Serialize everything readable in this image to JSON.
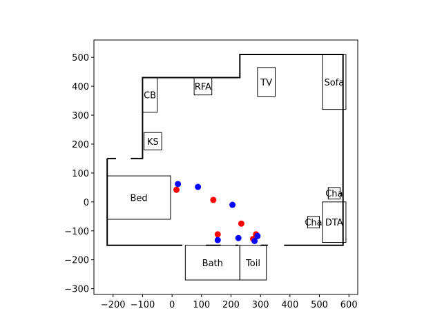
{
  "chart_data": {
    "type": "scatter",
    "title": "",
    "xlabel": "",
    "ylabel": "",
    "xlim": [
      -265,
      630
    ],
    "ylim": [
      -320,
      560
    ],
    "xticks": [
      -200,
      -100,
      0,
      100,
      200,
      300,
      400,
      500,
      600
    ],
    "yticks": [
      -300,
      -200,
      -100,
      0,
      100,
      200,
      300,
      400,
      500
    ],
    "grid": false,
    "legend": "none",
    "walls": [
      [
        [
          -220,
          150
        ],
        [
          -220,
          -150
        ],
        [
          35,
          -150
        ]
      ],
      [
        [
          -220,
          150
        ],
        [
          -190,
          150
        ]
      ],
      [
        [
          -140,
          150
        ],
        [
          -100,
          150
        ],
        [
          -100,
          430
        ],
        [
          230,
          430
        ],
        [
          230,
          510
        ],
        [
          580,
          510
        ],
        [
          580,
          -150
        ],
        [
          380,
          -150
        ]
      ],
      [
        [
          325,
          -150
        ],
        [
          300,
          -150
        ]
      ],
      [
        [
          225,
          -150
        ],
        [
          215,
          -150
        ]
      ],
      [
        [
          165,
          -150
        ],
        [
          115,
          -150
        ]
      ]
    ],
    "furniture": [
      {
        "label": "Bed",
        "x0": -220,
        "x1": -5,
        "y0": -60,
        "y1": 90
      },
      {
        "label": "KS",
        "x0": -95,
        "x1": -35,
        "y0": 180,
        "y1": 240
      },
      {
        "label": "CB",
        "x0": -100,
        "x1": -50,
        "y0": 310,
        "y1": 430
      },
      {
        "label": "RFA",
        "x0": 75,
        "x1": 135,
        "y0": 370,
        "y1": 430
      },
      {
        "label": "TV",
        "x0": 290,
        "x1": 350,
        "y0": 365,
        "y1": 465
      },
      {
        "label": "Sofa",
        "x0": 510,
        "x1": 590,
        "y0": 320,
        "y1": 510
      },
      {
        "label": "Cha",
        "x0": 530,
        "x1": 570,
        "y0": 10,
        "y1": 50
      },
      {
        "label": "Cha",
        "x0": 460,
        "x1": 500,
        "y0": -90,
        "y1": -50
      },
      {
        "label": "DTA",
        "x0": 510,
        "x1": 590,
        "y0": -140,
        "y1": 0
      },
      {
        "label": "Bath",
        "x0": 45,
        "x1": 230,
        "y0": -270,
        "y1": -150
      },
      {
        "label": "Toil",
        "x0": 230,
        "x1": 320,
        "y0": -270,
        "y1": -150
      }
    ],
    "series": [
      {
        "color": "#ff0000",
        "points": [
          [
            15,
            42
          ],
          [
            140,
            7
          ],
          [
            155,
            -112
          ],
          [
            235,
            -75
          ],
          [
            275,
            -128
          ],
          [
            285,
            -112
          ]
        ]
      },
      {
        "color": "#0000ff",
        "points": [
          [
            20,
            62
          ],
          [
            88,
            52
          ],
          [
            155,
            -132
          ],
          [
            205,
            -10
          ],
          [
            225,
            -125
          ],
          [
            280,
            -135
          ],
          [
            290,
            -118
          ]
        ]
      }
    ]
  }
}
